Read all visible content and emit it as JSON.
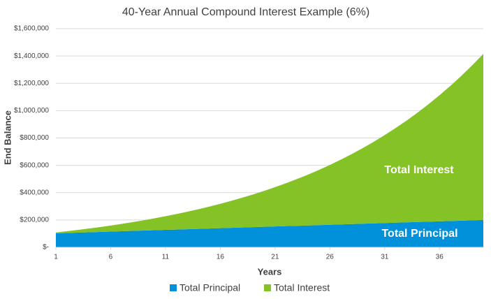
{
  "chart_data": {
    "type": "area",
    "stacked": true,
    "title": "40-Year Annual Compound Interest Example (6%)",
    "xlabel": "Years",
    "ylabel": "End Balance",
    "x": [
      1,
      2,
      3,
      4,
      5,
      6,
      7,
      8,
      9,
      10,
      11,
      12,
      13,
      14,
      15,
      16,
      17,
      18,
      19,
      20,
      21,
      22,
      23,
      24,
      25,
      26,
      27,
      28,
      29,
      30,
      31,
      32,
      33,
      34,
      35,
      36,
      37,
      38,
      39,
      40
    ],
    "xlim": [
      1,
      40
    ],
    "xticks": [
      1,
      6,
      11,
      16,
      21,
      26,
      31,
      36
    ],
    "ylim": [
      0,
      1600000
    ],
    "yticks": [
      {
        "value": 0,
        "label": "$-"
      },
      {
        "value": 200000,
        "label": "$200,000"
      },
      {
        "value": 400000,
        "label": "$400,000"
      },
      {
        "value": 600000,
        "label": "$600,000"
      },
      {
        "value": 800000,
        "label": "$800,000"
      },
      {
        "value": 1000000,
        "label": "$1,000,000"
      },
      {
        "value": 1200000,
        "label": "$1,200,000"
      },
      {
        "value": 1400000,
        "label": "$1,400,000"
      },
      {
        "value": 1600000,
        "label": "$1,600,000"
      }
    ],
    "grid": true,
    "legend": "bottom",
    "series": [
      {
        "name": "Total Principal",
        "color": "#0091da",
        "values": [
          102500,
          105000,
          107500,
          110000,
          112500,
          115000,
          117500,
          120000,
          122500,
          125000,
          127500,
          130000,
          132500,
          135000,
          137500,
          140000,
          142500,
          145000,
          147500,
          150000,
          152500,
          155000,
          157500,
          160000,
          162500,
          165000,
          167500,
          170000,
          172500,
          175000,
          177500,
          180000,
          182500,
          185000,
          187500,
          190000,
          192500,
          195000,
          197500,
          200000
        ]
      },
      {
        "name": "Total Interest",
        "color": "#84c225",
        "values": [
          6000,
          12510,
          19561,
          27184,
          35415,
          44290,
          53848,
          64129,
          75176,
          87037,
          99759,
          113394,
          127998,
          143628,
          160346,
          178216,
          197309,
          217698,
          239460,
          262678,
          287438,
          313834,
          341964,
          371932,
          403848,
          437829,
          473999,
          512489,
          553438,
          596994,
          643314,
          692563,
          744917,
          800562,
          859695,
          922527,
          989279,
          1060185,
          1135497,
          1215476
        ]
      }
    ],
    "annotations": [
      "Total Interest",
      "Total Principal"
    ]
  }
}
